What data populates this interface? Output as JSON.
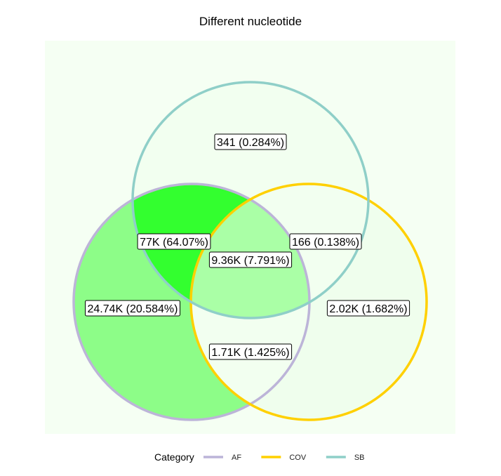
{
  "title": "Different nucleotide",
  "colors": {
    "panel_bg": "#f5fff3",
    "AF": "#bcb4d8",
    "COV": "#ffd000",
    "SB": "#8fcfc8"
  },
  "chart_data": {
    "type": "venn",
    "sets": [
      "AF",
      "COV",
      "SB"
    ],
    "regions": [
      {
        "sets": [
          "SB"
        ],
        "label": "341 (0.284%)",
        "count": 341,
        "percent": 0.284,
        "fill": "#f2fff0"
      },
      {
        "sets": [
          "AF",
          "SB"
        ],
        "label": "77K (64.07%)",
        "count": 77000,
        "percent": 64.07,
        "fill": "#33ff2f"
      },
      {
        "sets": [
          "COV",
          "SB"
        ],
        "label": "166 (0.138%)",
        "count": 166,
        "percent": 0.138,
        "fill": "#f2fff0"
      },
      {
        "sets": [
          "AF",
          "COV",
          "SB"
        ],
        "label": "9.36K (7.791%)",
        "count": 9360,
        "percent": 7.791,
        "fill": "#aaffa6"
      },
      {
        "sets": [
          "AF"
        ],
        "label": "24.74K (20.584%)",
        "count": 24740,
        "percent": 20.584,
        "fill": "#8dfd88"
      },
      {
        "sets": [
          "COV"
        ],
        "label": "2.02K (1.682%)",
        "count": 2020,
        "percent": 1.682,
        "fill": "#effeed"
      },
      {
        "sets": [
          "AF",
          "COV"
        ],
        "label": "1.71K (1.425%)",
        "count": 1710,
        "percent": 1.425,
        "fill": "#f2fff0"
      }
    ]
  },
  "legend": {
    "title": "Category",
    "items": [
      {
        "name": "AF",
        "color": "#bcb4d8"
      },
      {
        "name": "COV",
        "color": "#ffd000"
      },
      {
        "name": "SB",
        "color": "#8fcfc8"
      }
    ]
  }
}
